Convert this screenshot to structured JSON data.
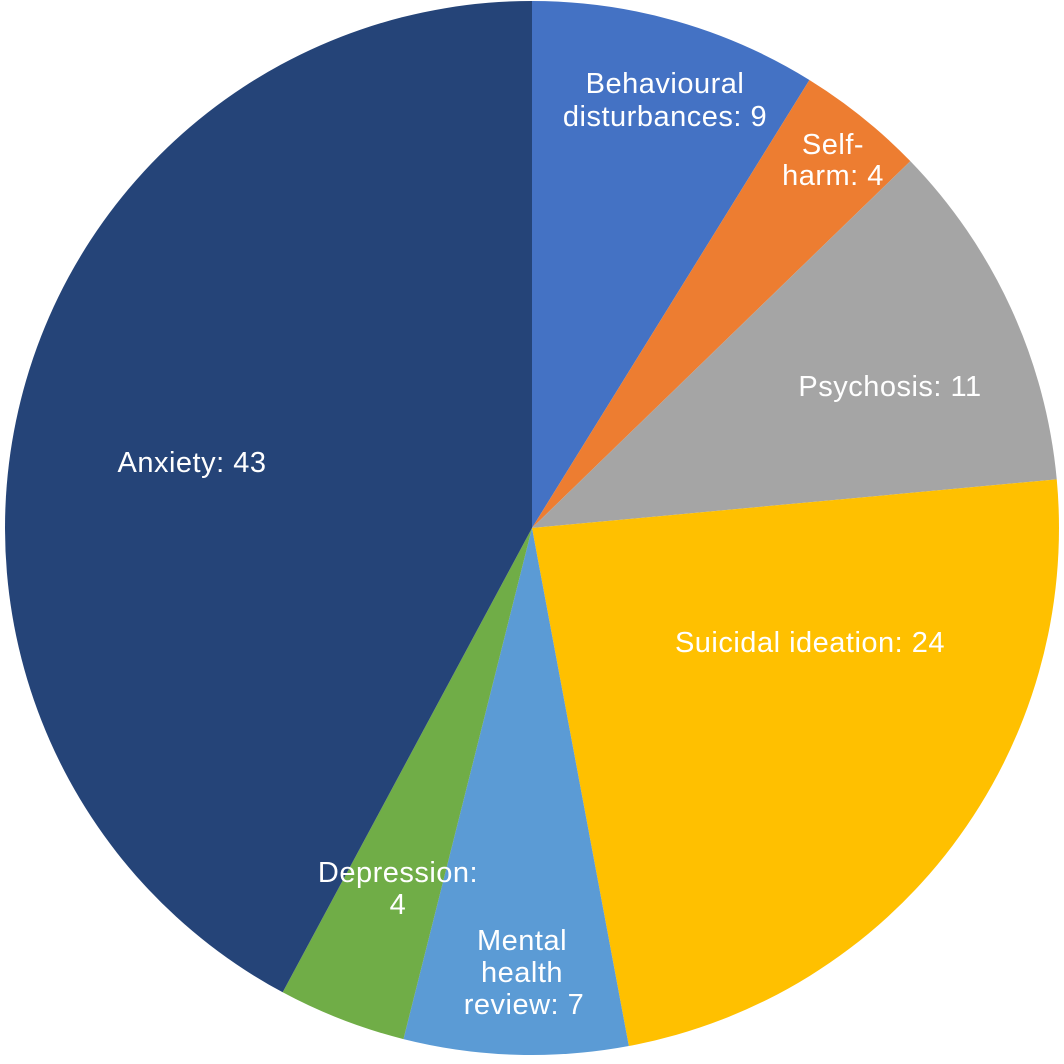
{
  "chart_data": {
    "type": "pie",
    "title": "",
    "total": 102,
    "start_angle_deg": 0,
    "direction": "clockwise",
    "legend": "none",
    "label_position": "inside",
    "label_color": "#FFFFFF",
    "background_color": "#FFFFFF",
    "slices": [
      {
        "label": "Behavioural disturbances",
        "value": 9,
        "color": "#4472C4",
        "label_text": "Behavioural disturbances: 9",
        "label_lines": [
          "Behavioural",
          "disturbances: 9"
        ]
      },
      {
        "label": "Self-harm",
        "value": 4,
        "color": "#ED7D31",
        "label_text": "Self-harm: 4",
        "label_lines": [
          "Self-",
          "harm: 4"
        ]
      },
      {
        "label": "Psychosis",
        "value": 11,
        "color": "#A5A5A5",
        "label_text": "Psychosis: 11",
        "label_lines": [
          "Psychosis: 11"
        ]
      },
      {
        "label": "Suicidal ideation",
        "value": 24,
        "color": "#FFC000",
        "label_text": "Suicidal ideation: 24",
        "label_lines": [
          "Suicidal ideation: 24"
        ]
      },
      {
        "label": "Mental health review",
        "value": 7,
        "color": "#5B9BD5",
        "label_text": "Mental health review: 7",
        "label_lines": [
          "Mental",
          "health",
          "review: 7"
        ]
      },
      {
        "label": "Depression",
        "value": 4,
        "color": "#70AD47",
        "label_text": "Depression: 4",
        "label_lines": [
          "Depression:",
          "4"
        ]
      },
      {
        "label": "Anxiety",
        "value": 43,
        "color": "#254478",
        "label_text": "Anxiety: 43",
        "label_lines": [
          "Anxiety: 43"
        ]
      }
    ]
  }
}
